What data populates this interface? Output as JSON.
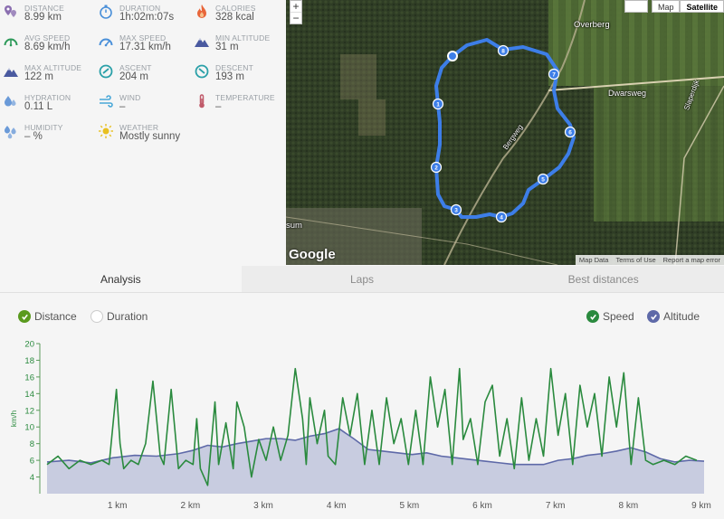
{
  "stats": [
    {
      "label": "DISTANCE",
      "value": "8.99 km",
      "icon": "distance-pin-icon",
      "color": "#8b6fb0"
    },
    {
      "label": "DURATION",
      "value": "1h:02m:07s",
      "icon": "stopwatch-icon",
      "color": "#4a90d9"
    },
    {
      "label": "CALORIES",
      "value": "328 kcal",
      "icon": "flame-icon",
      "color": "#e8663a"
    },
    {
      "label": "AVG SPEED",
      "value": "8.69 km/h",
      "icon": "avg-speed-gauge-icon",
      "color": "#2e9a5a"
    },
    {
      "label": "MAX SPEED",
      "value": "17.31 km/h",
      "icon": "max-speed-gauge-icon",
      "color": "#4a90d9"
    },
    {
      "label": "MIN ALTITUDE",
      "value": "31 m",
      "icon": "min-altitude-mountain-icon",
      "color": "#4a5aa0"
    },
    {
      "label": "MAX ALTITUDE",
      "value": "122 m",
      "icon": "max-altitude-mountain-icon",
      "color": "#4a5aa0"
    },
    {
      "label": "ASCENT",
      "value": "204 m",
      "icon": "ascent-icon",
      "color": "#2aa0a8"
    },
    {
      "label": "DESCENT",
      "value": "193 m",
      "icon": "descent-icon",
      "color": "#2aa0a8"
    },
    {
      "label": "HYDRATION",
      "value": "0.11 L",
      "icon": "water-drop-icon",
      "color": "#6a9ad8"
    },
    {
      "label": "WIND",
      "value": "–",
      "icon": "wind-icon",
      "color": "#4aa8d8"
    },
    {
      "label": "TEMPERATURE",
      "value": "–",
      "icon": "thermometer-icon",
      "color": "#c05a6a"
    },
    {
      "label": "HUMIDITY",
      "value": "– %",
      "icon": "humidity-drops-icon",
      "color": "#6a9ad8"
    },
    {
      "label": "WEATHER",
      "value": "Mostly sunny",
      "icon": "sun-icon",
      "color": "#e8c020"
    }
  ],
  "map": {
    "zoom_in": "+",
    "zoom_out": "−",
    "type_options": [
      "Map",
      "Satellite"
    ],
    "active_type": "Satellite",
    "place_labels": [
      "Overberg",
      "Dwarsweg",
      "Slaperdijk",
      "Bergweg",
      "sum"
    ],
    "logo": "Google",
    "attribution": [
      "Map Data",
      "Terms of Use",
      "Report a map error"
    ],
    "route_markers": [
      "1",
      "2",
      "3",
      "4",
      "5",
      "6",
      "7",
      "8"
    ],
    "route_color": "#3d7ee8"
  },
  "tabs": [
    {
      "label": "Analysis",
      "active": true
    },
    {
      "label": "Laps",
      "active": false
    },
    {
      "label": "Best distances",
      "active": false
    }
  ],
  "controls": {
    "distance": {
      "label": "Distance",
      "checked": true
    },
    "duration": {
      "label": "Duration",
      "checked": false
    },
    "speed": {
      "label": "Speed",
      "checked": true
    },
    "altitude": {
      "label": "Altitude",
      "checked": true
    }
  },
  "chart_data": {
    "type": "line",
    "ylabel": "km/h",
    "ylim": [
      2,
      20
    ],
    "yticks": [
      "4",
      "6",
      "8",
      "10",
      "12",
      "14",
      "16",
      "18",
      "20"
    ],
    "xlim": [
      0,
      9
    ],
    "xticks": [
      "1 km",
      "2 km",
      "3 km",
      "4 km",
      "5 km",
      "6 km",
      "7 km",
      "8 km",
      "9 km"
    ],
    "series": [
      {
        "name": "Speed",
        "color": "#2a8a3e",
        "x": [
          0.0,
          0.15,
          0.3,
          0.45,
          0.6,
          0.75,
          0.85,
          0.95,
          1.0,
          1.05,
          1.15,
          1.25,
          1.35,
          1.45,
          1.55,
          1.6,
          1.7,
          1.8,
          1.9,
          2.0,
          2.05,
          2.1,
          2.2,
          2.3,
          2.35,
          2.45,
          2.55,
          2.6,
          2.7,
          2.8,
          2.9,
          3.0,
          3.1,
          3.2,
          3.3,
          3.4,
          3.5,
          3.55,
          3.6,
          3.7,
          3.8,
          3.85,
          3.95,
          4.05,
          4.15,
          4.25,
          4.35,
          4.45,
          4.55,
          4.65,
          4.75,
          4.85,
          4.95,
          5.05,
          5.15,
          5.25,
          5.35,
          5.45,
          5.55,
          5.65,
          5.7,
          5.8,
          5.9,
          6.0,
          6.1,
          6.2,
          6.3,
          6.4,
          6.5,
          6.6,
          6.7,
          6.8,
          6.9,
          7.0,
          7.1,
          7.2,
          7.3,
          7.4,
          7.5,
          7.6,
          7.7,
          7.8,
          7.9,
          8.0,
          8.1,
          8.2,
          8.3,
          8.45,
          8.6,
          8.75,
          8.9
        ],
        "values": [
          5.5,
          6.5,
          5.0,
          6.0,
          5.5,
          6.0,
          5.5,
          14.5,
          8.0,
          5.0,
          6.0,
          5.5,
          8.0,
          15.5,
          6.5,
          5.5,
          14.5,
          5.0,
          6.0,
          5.5,
          11.0,
          5.0,
          3.0,
          13.0,
          5.5,
          10.5,
          5.0,
          13.0,
          10.0,
          4.0,
          8.5,
          6.0,
          10.0,
          6.0,
          9.0,
          17.0,
          11.0,
          5.5,
          13.5,
          8.0,
          12.0,
          6.5,
          5.5,
          13.5,
          9.0,
          14.0,
          5.5,
          12.0,
          5.5,
          13.5,
          8.0,
          11.0,
          5.5,
          12.0,
          5.5,
          16.0,
          10.0,
          14.5,
          5.5,
          17.0,
          8.5,
          11.0,
          5.5,
          13.0,
          15.0,
          6.5,
          11.0,
          5.0,
          13.5,
          6.0,
          11.0,
          6.5,
          17.0,
          9.0,
          14.0,
          5.5,
          15.0,
          10.0,
          14.0,
          6.5,
          16.0,
          10.0,
          16.5,
          5.5,
          13.5,
          6.0,
          5.5,
          6.0,
          5.5,
          6.5,
          6.0
        ]
      },
      {
        "name": "Altitude",
        "color": "#5e69a8",
        "fill": "#c8cce0",
        "x": [
          0.0,
          0.3,
          0.6,
          0.9,
          1.2,
          1.5,
          1.8,
          2.0,
          2.2,
          2.4,
          2.6,
          2.8,
          3.0,
          3.2,
          3.4,
          3.6,
          3.8,
          4.0,
          4.2,
          4.4,
          4.6,
          4.8,
          5.0,
          5.2,
          5.4,
          5.6,
          5.8,
          6.0,
          6.2,
          6.4,
          6.6,
          6.8,
          7.0,
          7.2,
          7.4,
          7.6,
          7.8,
          8.0,
          8.2,
          8.4,
          8.6,
          8.8,
          9.0
        ],
        "values": [
          5.8,
          6.0,
          5.7,
          6.3,
          6.6,
          6.5,
          6.8,
          7.2,
          7.8,
          7.6,
          8.0,
          8.3,
          8.6,
          8.6,
          8.4,
          8.9,
          9.2,
          9.8,
          8.6,
          7.3,
          7.1,
          6.9,
          6.7,
          6.9,
          6.5,
          6.3,
          6.1,
          5.9,
          5.7,
          5.5,
          5.5,
          5.5,
          6.0,
          6.2,
          6.6,
          6.8,
          7.1,
          7.5,
          7.0,
          6.2,
          5.8,
          6.0,
          5.9
        ]
      }
    ]
  }
}
